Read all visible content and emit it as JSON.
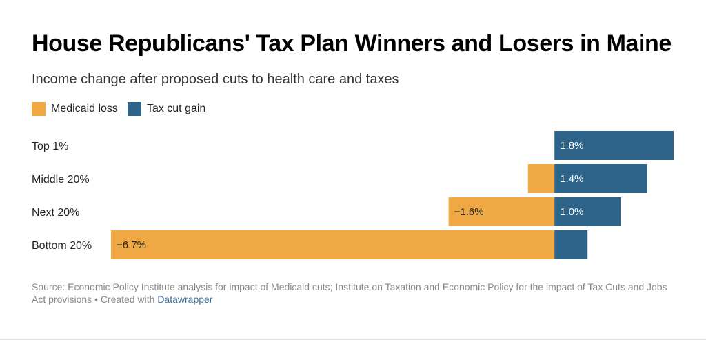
{
  "title": "House Republicans' Tax Plan Winners and Losers in Maine",
  "subtitle": "Income change after proposed cuts to health care and taxes",
  "legend": {
    "medicaid": "Medicaid loss",
    "tax": "Tax cut gain"
  },
  "colors": {
    "medicaid": "#f0a844",
    "tax": "#2e6389"
  },
  "chart_data": {
    "type": "bar",
    "orientation": "horizontal",
    "stacked": "diverging",
    "categories": [
      "Top 1%",
      "Middle 20%",
      "Next 20%",
      "Bottom 20%"
    ],
    "series": [
      {
        "name": "Medicaid loss",
        "values": [
          0,
          -0.4,
          -1.6,
          -6.7
        ],
        "labels": [
          "",
          "",
          "−1.6%",
          "−6.7%"
        ]
      },
      {
        "name": "Tax cut gain",
        "values": [
          1.8,
          1.4,
          1.0,
          0.5
        ],
        "labels": [
          "1.8%",
          "1.4%",
          "1.0%",
          ""
        ]
      }
    ],
    "xlim": [
      -6.7,
      1.8
    ],
    "unit": "%"
  },
  "source": {
    "text": "Source: Economic Policy Institute analysis for impact of Medicaid cuts; Institute on Taxation and Economic Policy for the impact of Tax Cuts and Jobs Act provisions • Created with ",
    "link": "Datawrapper"
  }
}
